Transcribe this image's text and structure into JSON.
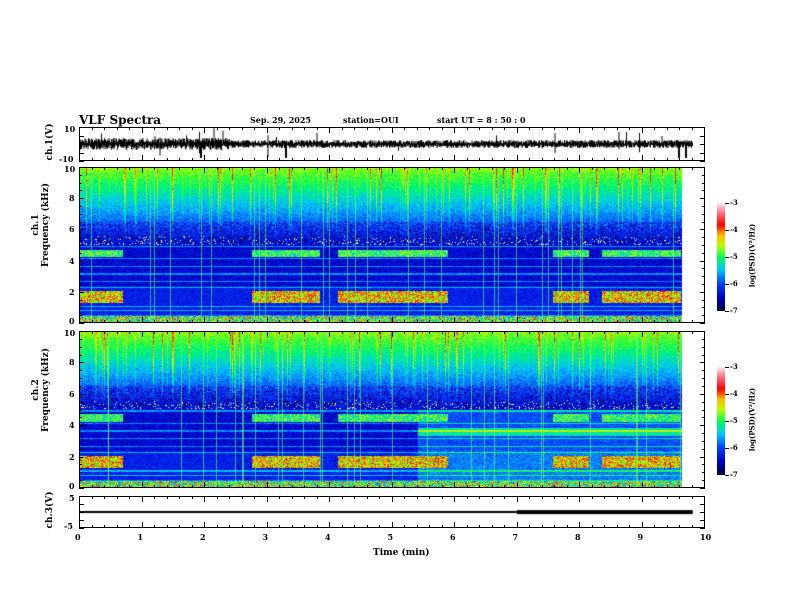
{
  "header": {
    "title": "VLF Spectra",
    "date": "Sep. 29, 2025",
    "station": "station=OUI",
    "start": "start  UT =   8 : 50 : 0"
  },
  "chart_data": {
    "type": "heatmap",
    "x": {
      "label": "Time  (min)",
      "range": [
        0,
        10
      ],
      "ticks": [
        "0",
        "1",
        "2",
        "3",
        "4",
        "5",
        "6",
        "7",
        "8",
        "9",
        "10"
      ],
      "data_end": 9.82
    },
    "panels": [
      {
        "name": "ch1-waveform",
        "type": "line",
        "ylabel": "ch.1(V)",
        "ylim": [
          -10,
          10
        ],
        "yticks": [
          "10",
          "-10"
        ]
      },
      {
        "name": "ch1-spectrogram",
        "type": "heatmap",
        "ylabel_top": "ch.1",
        "ylabel": "Frequency  (kHz)",
        "ylim": [
          0,
          10
        ],
        "yticks": [
          "0",
          "2",
          "4",
          "6",
          "8",
          "10"
        ],
        "colorbar": {
          "label": "log(PSD)(V²/Hz)",
          "range": [
            -7,
            -3
          ],
          "ticks": [
            "-3",
            "-4",
            "-5",
            "-6",
            "-7"
          ]
        }
      },
      {
        "name": "ch2-spectrogram",
        "type": "heatmap",
        "ylabel_top": "ch.2",
        "ylabel": "Frequency  (kHz)",
        "ylim": [
          0,
          10
        ],
        "yticks": [
          "0",
          "2",
          "4",
          "6",
          "8",
          "10"
        ],
        "colorbar": {
          "label": "log(PSD)(V²/Hz)",
          "range": [
            -7,
            -3
          ],
          "ticks": [
            "-3",
            "-4",
            "-5",
            "-6",
            "-7"
          ]
        }
      },
      {
        "name": "ch3-waveform",
        "type": "line",
        "ylabel": "ch.3(V)",
        "ylim": [
          -5,
          5
        ],
        "yticks": [
          "5",
          "-5"
        ],
        "series": [
          {
            "x": [
              0,
              7.0
            ],
            "y": [
              0,
              0
            ]
          },
          {
            "x": [
              7.0,
              9.82
            ],
            "y": [
              0.3,
              0.3
            ]
          }
        ]
      }
    ]
  }
}
